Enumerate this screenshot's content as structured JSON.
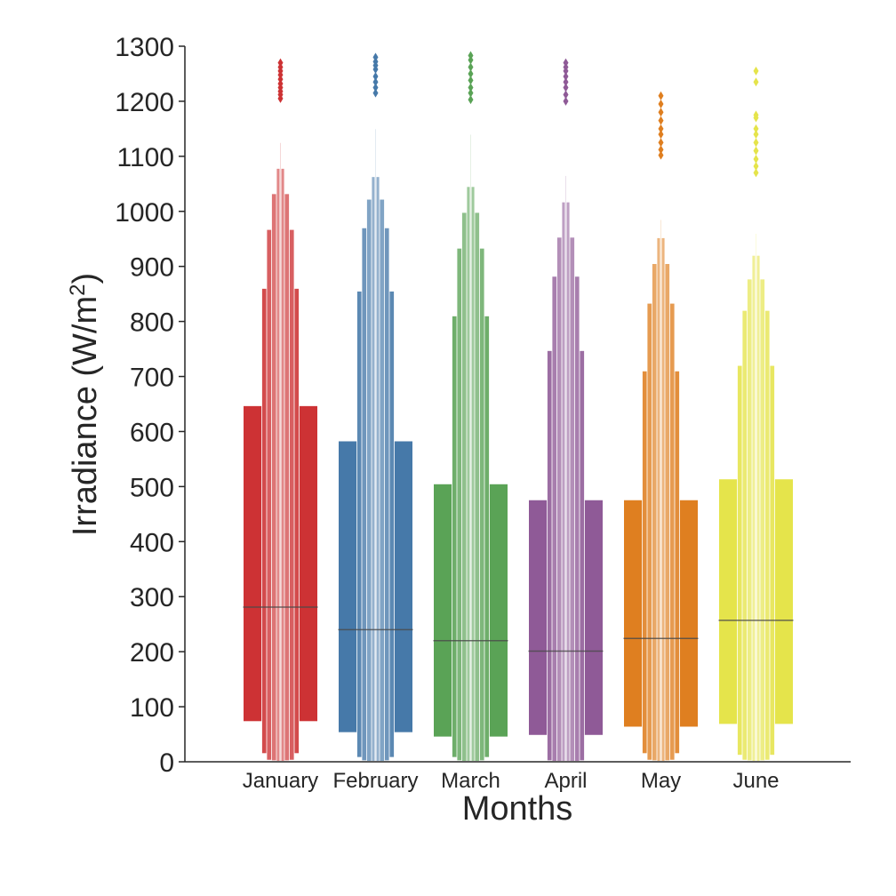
{
  "chart_data": {
    "type": "boxen",
    "xlabel": "Months",
    "ylabel_main": "Irradiance (W/m",
    "ylabel_sup": "2",
    "ylabel_close": ")",
    "ylim": [
      0,
      1300
    ],
    "yticks": [
      0,
      100,
      200,
      300,
      400,
      500,
      600,
      700,
      800,
      900,
      1000,
      1100,
      1200,
      1300
    ],
    "grid": false,
    "categories": [
      "January",
      "February",
      "March",
      "April",
      "May",
      "June"
    ],
    "colors": [
      "#cd3234",
      "#4679a9",
      "#5aa356",
      "#8f5a97",
      "#df7f20",
      "#e5e44b"
    ],
    "series": [
      {
        "category": "January",
        "median": 281,
        "boxes": [
          [
            73,
            647
          ],
          [
            15,
            860
          ],
          [
            3,
            967
          ],
          [
            2,
            1032
          ],
          [
            1,
            1078
          ],
          [
            1,
            1125
          ]
        ],
        "outliers": [
          1205,
          1212,
          1218,
          1225,
          1232,
          1240,
          1248,
          1255,
          1262,
          1270
        ]
      },
      {
        "category": "February",
        "median": 240,
        "boxes": [
          [
            53,
            583
          ],
          [
            8,
            855
          ],
          [
            2,
            970
          ],
          [
            1,
            1022
          ],
          [
            1,
            1063
          ],
          [
            1,
            1110
          ],
          [
            1,
            1150
          ]
        ],
        "outliers": [
          1215,
          1225,
          1235,
          1245,
          1258,
          1265,
          1272,
          1280
        ]
      },
      {
        "category": "March",
        "median": 220,
        "boxes": [
          [
            45,
            505
          ],
          [
            8,
            810
          ],
          [
            2,
            933
          ],
          [
            1,
            998
          ],
          [
            1,
            1045
          ],
          [
            1,
            1095
          ],
          [
            1,
            1140
          ]
        ],
        "outliers": [
          1203,
          1215,
          1225,
          1238,
          1250,
          1262,
          1275,
          1283
        ]
      },
      {
        "category": "April",
        "median": 201,
        "boxes": [
          [
            48,
            476
          ],
          [
            2,
            747
          ],
          [
            1,
            882
          ],
          [
            1,
            953
          ],
          [
            1,
            1017
          ],
          [
            1,
            1065
          ]
        ],
        "outliers": [
          1200,
          1212,
          1225,
          1235,
          1245,
          1255,
          1262,
          1270
        ]
      },
      {
        "category": "May",
        "median": 224,
        "boxes": [
          [
            63,
            476
          ],
          [
            15,
            710
          ],
          [
            3,
            833
          ],
          [
            2,
            905
          ],
          [
            1,
            952
          ],
          [
            1,
            985
          ]
        ],
        "outliers": [
          1102,
          1112,
          1125,
          1140,
          1150,
          1165,
          1180,
          1195,
          1210
        ]
      },
      {
        "category": "June",
        "median": 257,
        "boxes": [
          [
            68,
            514
          ],
          [
            12,
            720
          ],
          [
            3,
            820
          ],
          [
            2,
            877
          ],
          [
            1,
            920
          ],
          [
            1,
            960
          ]
        ],
        "outliers": [
          1070,
          1082,
          1095,
          1110,
          1125,
          1140,
          1150,
          1170,
          1175,
          1235,
          1255
        ]
      }
    ]
  }
}
